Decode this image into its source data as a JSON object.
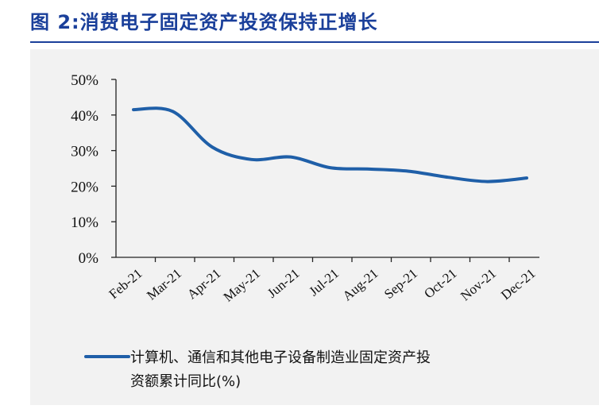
{
  "header": {
    "title": "图 2:消费电子固定资产投资保持正增长"
  },
  "chart_data": {
    "type": "line",
    "categories": [
      "Feb-21",
      "Mar-21",
      "Apr-21",
      "May-21",
      "Jun-21",
      "Jul-21",
      "Aug-21",
      "Sep-21",
      "Oct-21",
      "Nov-21",
      "Dec-21"
    ],
    "series": [
      {
        "name": "计算机、通信和其他电子设备制造业固定资产投资额累计同比(%)",
        "name_lines": [
          "计算机、通信和其他电子设备制造业固定资产投",
          "资额累计同比(%)"
        ],
        "values": [
          41.5,
          41,
          31,
          27.5,
          28.2,
          25.2,
          24.8,
          24.2,
          22.5,
          21.3,
          22.3
        ],
        "color": "#1f5fa8"
      }
    ],
    "yticks": [
      "0%",
      "10%",
      "20%",
      "30%",
      "40%",
      "50%"
    ],
    "ylim": [
      0,
      50
    ],
    "grid": false,
    "legend_position": "bottom"
  }
}
